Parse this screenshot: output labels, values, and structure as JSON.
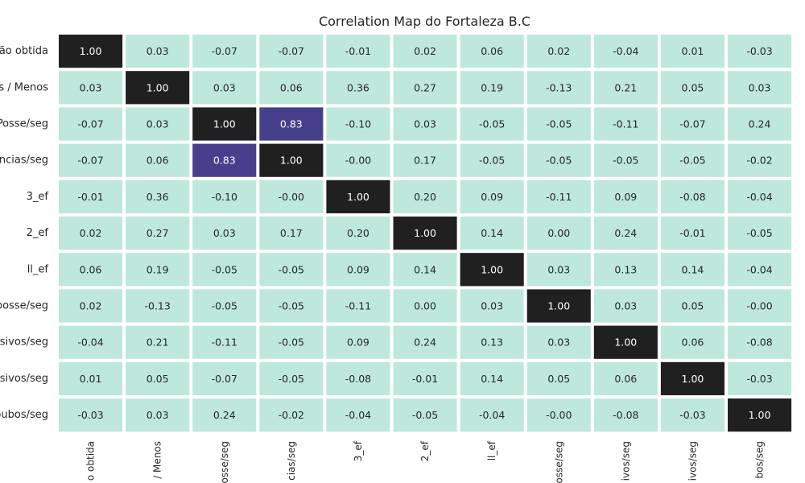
{
  "chart_data": {
    "type": "heatmap",
    "title": "Correlation Map do Fortaleza B.C",
    "y_labels": [
      "ão obtida",
      "s / Menos",
      "Posse/seg",
      "encias/seg",
      "3_ef",
      "2_ef",
      "ll_ef",
      "posse/seg",
      "nsivos/seg",
      "nsivos/seg",
      "oubos/seg"
    ],
    "x_labels": [
      "o obtida",
      "/ Menos",
      "osse/seg",
      "cias/seg",
      "3_ef",
      "2_ef",
      "ll_ef",
      "osse/seg",
      "ivos/seg",
      "ivos/seg",
      "bos/seg"
    ],
    "matrix": [
      [
        1.0,
        0.03,
        -0.07,
        -0.07,
        -0.01,
        0.02,
        0.06,
        0.02,
        -0.04,
        0.01,
        -0.03
      ],
      [
        0.03,
        1.0,
        0.03,
        0.06,
        0.36,
        0.27,
        0.19,
        -0.13,
        0.21,
        0.05,
        0.03
      ],
      [
        -0.07,
        0.03,
        1.0,
        0.83,
        -0.1,
        0.03,
        -0.05,
        -0.05,
        -0.11,
        -0.07,
        0.24
      ],
      [
        -0.07,
        0.06,
        0.83,
        1.0,
        -0.0,
        0.17,
        -0.05,
        -0.05,
        -0.05,
        -0.05,
        -0.02
      ],
      [
        -0.01,
        0.36,
        -0.1,
        -0.0,
        1.0,
        0.2,
        0.09,
        -0.11,
        0.09,
        -0.08,
        -0.04
      ],
      [
        0.02,
        0.27,
        0.03,
        0.17,
        0.2,
        1.0,
        0.14,
        0.0,
        0.24,
        -0.01,
        -0.05
      ],
      [
        0.06,
        0.19,
        -0.05,
        -0.05,
        0.09,
        0.14,
        1.0,
        0.03,
        0.13,
        0.14,
        -0.04
      ],
      [
        0.02,
        -0.13,
        -0.05,
        -0.05,
        -0.11,
        0.0,
        0.03,
        1.0,
        0.03,
        0.05,
        -0.0
      ],
      [
        -0.04,
        0.21,
        -0.11,
        -0.05,
        0.09,
        0.24,
        0.13,
        0.03,
        1.0,
        0.06,
        -0.08
      ],
      [
        0.01,
        0.05,
        -0.07,
        -0.05,
        -0.08,
        -0.01,
        0.14,
        0.05,
        0.06,
        1.0,
        -0.03
      ],
      [
        -0.03,
        0.03,
        0.24,
        -0.02,
        -0.04,
        -0.05,
        -0.04,
        -0.0,
        -0.08,
        -0.03,
        1.0
      ]
    ],
    "color_bins": [
      {
        "min": 0.95,
        "color": "#202020",
        "text_color": "#ffffff"
      },
      {
        "min": 0.5,
        "color": "#463f8c",
        "text_color": "#ffffff"
      },
      {
        "min": -1.0,
        "color": "#bfe8dc",
        "text_color": "#262626"
      }
    ],
    "annotations_format": "2 decimals",
    "grid": false,
    "legend": "none"
  }
}
